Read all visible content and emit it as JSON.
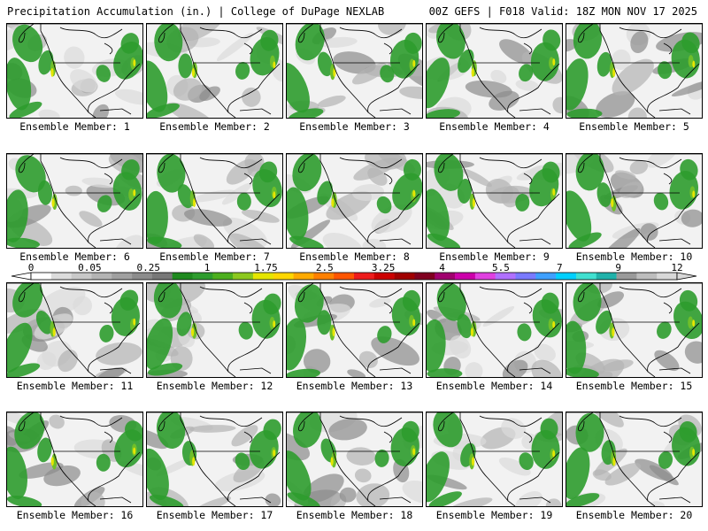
{
  "header": {
    "left": "Precipitation Accumulation (in.) | College of DuPage NEXLAB",
    "right": "00Z GEFS | F018 Valid: 18Z MON NOV 17 2025"
  },
  "panels": [
    {
      "label": "Ensemble Member: 1"
    },
    {
      "label": "Ensemble Member: 2"
    },
    {
      "label": "Ensemble Member: 3"
    },
    {
      "label": "Ensemble Member: 4"
    },
    {
      "label": "Ensemble Member: 5"
    },
    {
      "label": "Ensemble Member: 6"
    },
    {
      "label": "Ensemble Member: 7"
    },
    {
      "label": "Ensemble Member: 8"
    },
    {
      "label": "Ensemble Member: 9"
    },
    {
      "label": "Ensemble Member: 10"
    },
    {
      "label": "Ensemble Member: 11"
    },
    {
      "label": "Ensemble Member: 12"
    },
    {
      "label": "Ensemble Member: 13"
    },
    {
      "label": "Ensemble Member: 14"
    },
    {
      "label": "Ensemble Member: 15"
    },
    {
      "label": "Ensemble Member: 16"
    },
    {
      "label": "Ensemble Member: 17"
    },
    {
      "label": "Ensemble Member: 18"
    },
    {
      "label": "Ensemble Member: 19"
    },
    {
      "label": "Ensemble Member: 20"
    }
  ],
  "colorbar": {
    "tick_labels": [
      "0",
      "0.05",
      "0.25",
      "1",
      "1.75",
      "2.5",
      "3.25",
      "4",
      "5.5",
      "7",
      "9",
      "12"
    ],
    "colors": [
      "#ffffff",
      "#dcdcdc",
      "#c8c8c8",
      "#b4b4b4",
      "#a0a0a0",
      "#8c8c8c",
      "#787878",
      "#1f8a1f",
      "#2e9c2e",
      "#4caf1e",
      "#8cc81e",
      "#e6e600",
      "#ffd700",
      "#ffaa00",
      "#ff8000",
      "#ff5500",
      "#ee1c1c",
      "#cc0000",
      "#a00000",
      "#800020",
      "#a0006e",
      "#cc00aa",
      "#e040e0",
      "#b070ff",
      "#7a7aff",
      "#3fa0ff",
      "#00d0ff",
      "#40e0d0",
      "#20b2aa",
      "#9a9a9a",
      "#bdbdbd",
      "#d8d8d8"
    ]
  },
  "map_colors": {
    "background": "#f2f2f2",
    "light_gray": "#dcdcdc",
    "mid_gray": "#b4b4b4",
    "dark_gray": "#8c8c8c",
    "green": "#2e9c2e",
    "light_green": "#6fbf2a",
    "yellow": "#e6e600",
    "outline": "#000000"
  }
}
